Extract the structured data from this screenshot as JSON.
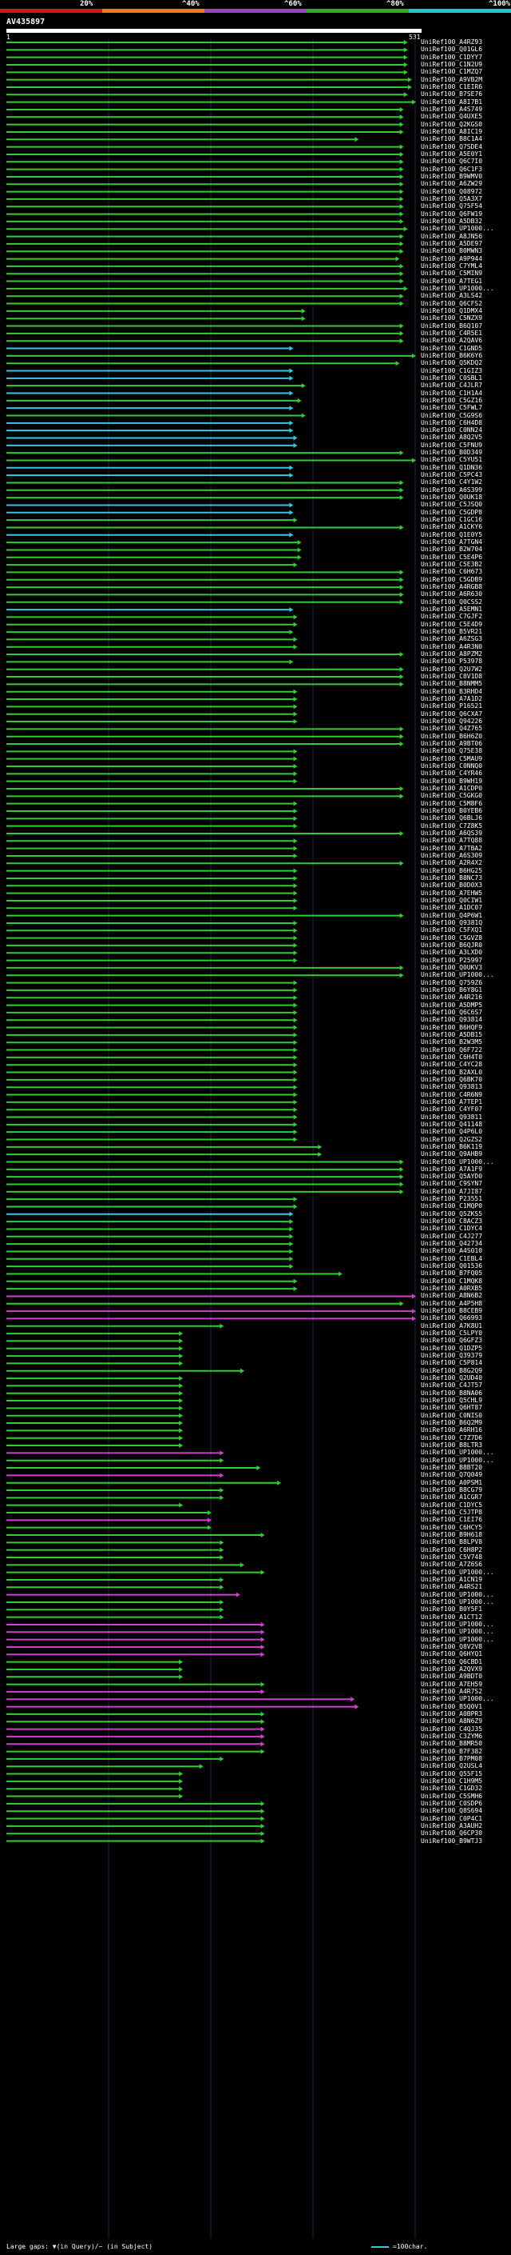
{
  "header": {
    "scale": [
      {
        "label": "20%",
        "color": "#e01010"
      },
      {
        "label": "^40%",
        "color": "#f07818"
      },
      {
        "label": "^60%",
        "color": "#a040c0"
      },
      {
        "label": "^80%",
        "color": "#30b020"
      },
      {
        "label": "^100%",
        "color": "#20c8d8"
      }
    ],
    "query_id": "AV435897",
    "query_start": "1",
    "query_end": "531"
  },
  "colors": {
    "green": "#33cc33",
    "cyan": "#33c8e0",
    "magenta": "#d040d0",
    "label": "#ffffff"
  },
  "hits": [
    {
      "id": "UniRef100_A4RZ93",
      "end": 0.98,
      "c": "g"
    },
    {
      "id": "UniRef100_Q01GL6",
      "end": 0.98,
      "c": "g"
    },
    {
      "id": "UniRef100_C1DYY7",
      "end": 0.98,
      "c": "g"
    },
    {
      "id": "UniRef100_C1N2U9",
      "end": 0.98,
      "c": "g"
    },
    {
      "id": "UniRef100_C1MZQ7",
      "end": 0.98,
      "c": "g"
    },
    {
      "id": "UniRef100_A9VB2M",
      "end": 0.99,
      "c": "g"
    },
    {
      "id": "UniRef100_C1EIR6",
      "end": 0.99,
      "c": "g"
    },
    {
      "id": "UniRef100_B7SE76",
      "end": 0.98,
      "c": "g"
    },
    {
      "id": "UniRef100_A8I7B1",
      "end": 1.0,
      "c": "g"
    },
    {
      "id": "UniRef100_A4S749",
      "end": 0.97,
      "c": "g"
    },
    {
      "id": "UniRef100_Q4UXE5",
      "end": 0.97,
      "c": "g"
    },
    {
      "id": "UniRef100_Q2KGS0",
      "end": 0.97,
      "c": "g"
    },
    {
      "id": "UniRef100_A8IC19",
      "end": 0.97,
      "c": "g"
    },
    {
      "id": "UniRef100_B8C1A4",
      "end": 0.86,
      "c": "g"
    },
    {
      "id": "UniRef100_Q7SDE4",
      "end": 0.97,
      "c": "g"
    },
    {
      "id": "UniRef100_A5E0Y1",
      "end": 0.97,
      "c": "g"
    },
    {
      "id": "UniRef100_Q6C7I0",
      "end": 0.97,
      "c": "g"
    },
    {
      "id": "UniRef100_Q6C1F3",
      "end": 0.97,
      "c": "g"
    },
    {
      "id": "UniRef100_B9WMV0",
      "end": 0.97,
      "c": "g"
    },
    {
      "id": "UniRef100_A6ZW29",
      "end": 0.97,
      "c": "g"
    },
    {
      "id": "UniRef100_Q08972",
      "end": 0.97,
      "c": "g"
    },
    {
      "id": "UniRef100_Q5A3X7",
      "end": 0.97,
      "c": "g"
    },
    {
      "id": "UniRef100_Q75F54",
      "end": 0.97,
      "c": "g"
    },
    {
      "id": "UniRef100_Q6FW19",
      "end": 0.97,
      "c": "g"
    },
    {
      "id": "UniRef100_A5DB32",
      "end": 0.97,
      "c": "g"
    },
    {
      "id": "UniRef100_UP1000...",
      "end": 0.98,
      "c": "g"
    },
    {
      "id": "UniRef100_A8JN56",
      "end": 0.97,
      "c": "g"
    },
    {
      "id": "UniRef100_A5DE97",
      "end": 0.97,
      "c": "g"
    },
    {
      "id": "UniRef100_B0MWN3",
      "end": 0.97,
      "c": "g"
    },
    {
      "id": "UniRef100_A9P944",
      "end": 0.96,
      "c": "g"
    },
    {
      "id": "UniRef100_C7YML4",
      "end": 0.97,
      "c": "g"
    },
    {
      "id": "UniRef100_C5MIN9",
      "end": 0.97,
      "c": "g"
    },
    {
      "id": "UniRef100_A7TEG1",
      "end": 0.97,
      "c": "g"
    },
    {
      "id": "UniRef100_UP1000...",
      "end": 0.98,
      "c": "g"
    },
    {
      "id": "UniRef100_A3LS42",
      "end": 0.97,
      "c": "g"
    },
    {
      "id": "UniRef100_Q6CFS2",
      "end": 0.97,
      "c": "g"
    },
    {
      "id": "UniRef100_Q1DMX4",
      "end": 0.73,
      "c": "g"
    },
    {
      "id": "UniRef100_C5NZX9",
      "end": 0.73,
      "c": "g"
    },
    {
      "id": "UniRef100_B6Q107",
      "end": 0.97,
      "c": "g"
    },
    {
      "id": "UniRef100_C4R5E1",
      "end": 0.97,
      "c": "g"
    },
    {
      "id": "UniRef100_A2QAV6",
      "end": 0.97,
      "c": "g"
    },
    {
      "id": "UniRef100_C1GND5",
      "end": 0.7,
      "c": "c"
    },
    {
      "id": "UniRef100_B6K6Y6",
      "end": 1.0,
      "c": "g"
    },
    {
      "id": "UniRef100_Q5KDQ2",
      "end": 0.96,
      "c": "g"
    },
    {
      "id": "UniRef100_C1GIZ3",
      "end": 0.7,
      "c": "c"
    },
    {
      "id": "UniRef100_C0SBL1",
      "end": 0.7,
      "c": "c"
    },
    {
      "id": "UniRef100_C4JLR7",
      "end": 0.73,
      "c": "g"
    },
    {
      "id": "UniRef100_C1H1A4",
      "end": 0.7,
      "c": "c"
    },
    {
      "id": "UniRef100_C5GZ16",
      "end": 0.72,
      "c": "g"
    },
    {
      "id": "UniRef100_C5FWL7",
      "end": 0.7,
      "c": "c"
    },
    {
      "id": "UniRef100_C5G9S6",
      "end": 0.73,
      "c": "g"
    },
    {
      "id": "UniRef100_C6H4D8",
      "end": 0.7,
      "c": "c"
    },
    {
      "id": "UniRef100_C0NN24",
      "end": 0.7,
      "c": "c"
    },
    {
      "id": "UniRef100_A8Q2V5",
      "end": 0.71,
      "c": "c"
    },
    {
      "id": "UniRef100_C5FNU9",
      "end": 0.71,
      "c": "c"
    },
    {
      "id": "UniRef100_B0D349",
      "end": 0.97,
      "c": "g"
    },
    {
      "id": "UniRef100_C5YU51",
      "end": 1.0,
      "c": "g"
    },
    {
      "id": "UniRef100_Q1DN36",
      "end": 0.7,
      "c": "c"
    },
    {
      "id": "UniRef100_C5PC43",
      "end": 0.7,
      "c": "c"
    },
    {
      "id": "UniRef100_C4Y1W2",
      "end": 0.97,
      "c": "g"
    },
    {
      "id": "UniRef100_A6S399",
      "end": 0.97,
      "c": "g"
    },
    {
      "id": "UniRef100_Q0UK18",
      "end": 0.97,
      "c": "g"
    },
    {
      "id": "UniRef100_C5JSQ0",
      "end": 0.7,
      "c": "c"
    },
    {
      "id": "UniRef100_C5GDP8",
      "end": 0.7,
      "c": "c"
    },
    {
      "id": "UniRef100_C1GC16",
      "end": 0.71,
      "c": "g"
    },
    {
      "id": "UniRef100_A1CKY6",
      "end": 0.97,
      "c": "g"
    },
    {
      "id": "UniRef100_Q1E0Y5",
      "end": 0.7,
      "c": "c"
    },
    {
      "id": "UniRef100_A7TGN4",
      "end": 0.72,
      "c": "g"
    },
    {
      "id": "UniRef100_B2W704",
      "end": 0.72,
      "c": "g"
    },
    {
      "id": "UniRef100_C5E4P6",
      "end": 0.72,
      "c": "g"
    },
    {
      "id": "UniRef100_C5E3B2",
      "end": 0.71,
      "c": "g"
    },
    {
      "id": "UniRef100_C6H673",
      "end": 0.97,
      "c": "g"
    },
    {
      "id": "UniRef100_C5GDB9",
      "end": 0.97,
      "c": "g"
    },
    {
      "id": "UniRef100_A4RGB8",
      "end": 0.97,
      "c": "g"
    },
    {
      "id": "UniRef100_A6R630",
      "end": 0.97,
      "c": "g"
    },
    {
      "id": "UniRef100_Q0CSS2",
      "end": 0.97,
      "c": "g"
    },
    {
      "id": "UniRef100_A5EMN1",
      "end": 0.7,
      "c": "c"
    },
    {
      "id": "UniRef100_C7GJF2",
      "end": 0.71,
      "c": "g"
    },
    {
      "id": "UniRef100_C5E4D9",
      "end": 0.71,
      "c": "g"
    },
    {
      "id": "UniRef100_B5VR21",
      "end": 0.7,
      "c": "g"
    },
    {
      "id": "UniRef100_A6ZSG3",
      "end": 0.71,
      "c": "g"
    },
    {
      "id": "UniRef100_A4R3N0",
      "end": 0.71,
      "c": "g"
    },
    {
      "id": "UniRef100_A8PZM2",
      "end": 0.97,
      "c": "g"
    },
    {
      "id": "UniRef100_P53978",
      "end": 0.7,
      "c": "g"
    },
    {
      "id": "UniRef100_Q2U7W2",
      "end": 0.97,
      "c": "g"
    },
    {
      "id": "UniRef100_C8V1D8",
      "end": 0.97,
      "c": "g"
    },
    {
      "id": "UniRef100_B8NMM5",
      "end": 0.97,
      "c": "g"
    },
    {
      "id": "UniRef100_B3RHD4",
      "end": 0.71,
      "c": "g"
    },
    {
      "id": "UniRef100_A7A1D2",
      "end": 0.71,
      "c": "g"
    },
    {
      "id": "UniRef100_P16521",
      "end": 0.71,
      "c": "g"
    },
    {
      "id": "UniRef100_Q6CXA7",
      "end": 0.71,
      "c": "g"
    },
    {
      "id": "UniRef100_Q94226",
      "end": 0.71,
      "c": "g"
    },
    {
      "id": "UniRef100_Q4Z765",
      "end": 0.97,
      "c": "g"
    },
    {
      "id": "UniRef100_B6H6Z0",
      "end": 0.97,
      "c": "g"
    },
    {
      "id": "UniRef100_A9BT06",
      "end": 0.97,
      "c": "g"
    },
    {
      "id": "UniRef100_Q75E38",
      "end": 0.71,
      "c": "g"
    },
    {
      "id": "UniRef100_C5MAU9",
      "end": 0.71,
      "c": "g"
    },
    {
      "id": "UniRef100_C0NNQ0",
      "end": 0.71,
      "c": "g"
    },
    {
      "id": "UniRef100_C4YR46",
      "end": 0.71,
      "c": "g"
    },
    {
      "id": "UniRef100_B9WH19",
      "end": 0.71,
      "c": "g"
    },
    {
      "id": "UniRef100_A1CDP0",
      "end": 0.97,
      "c": "g"
    },
    {
      "id": "UniRef100_C5GKG0",
      "end": 0.97,
      "c": "g"
    },
    {
      "id": "UniRef100_C5M8F6",
      "end": 0.71,
      "c": "g"
    },
    {
      "id": "UniRef100_B0YEB6",
      "end": 0.71,
      "c": "g"
    },
    {
      "id": "UniRef100_Q6BLJ6",
      "end": 0.71,
      "c": "g"
    },
    {
      "id": "UniRef100_C7Z8K5",
      "end": 0.71,
      "c": "g"
    },
    {
      "id": "UniRef100_A6QS39",
      "end": 0.97,
      "c": "g"
    },
    {
      "id": "UniRef100_A7TQ88",
      "end": 0.71,
      "c": "g"
    },
    {
      "id": "UniRef100_A7TBA2",
      "end": 0.71,
      "c": "g"
    },
    {
      "id": "UniRef100_A6S309",
      "end": 0.71,
      "c": "g"
    },
    {
      "id": "UniRef100_A2R4X2",
      "end": 0.97,
      "c": "g"
    },
    {
      "id": "UniRef100_B6HG25",
      "end": 0.71,
      "c": "g"
    },
    {
      "id": "UniRef100_B8NC73",
      "end": 0.71,
      "c": "g"
    },
    {
      "id": "UniRef100_B0D0X3",
      "end": 0.71,
      "c": "g"
    },
    {
      "id": "UniRef100_A7EHW5",
      "end": 0.71,
      "c": "g"
    },
    {
      "id": "UniRef100_Q0CIW1",
      "end": 0.71,
      "c": "g"
    },
    {
      "id": "UniRef100_A1DC07",
      "end": 0.71,
      "c": "g"
    },
    {
      "id": "UniRef100_Q4P6W1",
      "end": 0.97,
      "c": "g"
    },
    {
      "id": "UniRef100_Q9381Q",
      "end": 0.71,
      "c": "g"
    },
    {
      "id": "UniRef100_C5FXQ1",
      "end": 0.71,
      "c": "g"
    },
    {
      "id": "UniRef100_C5GVZ8",
      "end": 0.71,
      "c": "g"
    },
    {
      "id": "UniRef100_B6QJR0",
      "end": 0.71,
      "c": "g"
    },
    {
      "id": "UniRef100_A3LXD0",
      "end": 0.71,
      "c": "g"
    },
    {
      "id": "UniRef100_P25997",
      "end": 0.71,
      "c": "g"
    },
    {
      "id": "UniRef100_Q0UKV3",
      "end": 0.97,
      "c": "g"
    },
    {
      "id": "UniRef100_UP1000...",
      "end": 0.97,
      "c": "g"
    },
    {
      "id": "UniRef100_Q759Z6",
      "end": 0.71,
      "c": "g"
    },
    {
      "id": "UniRef100_B6Y8G1",
      "end": 0.71,
      "c": "g"
    },
    {
      "id": "UniRef100_A4R216",
      "end": 0.71,
      "c": "g"
    },
    {
      "id": "UniRef100_A5DMP5",
      "end": 0.71,
      "c": "g"
    },
    {
      "id": "UniRef100_Q6C6S7",
      "end": 0.71,
      "c": "g"
    },
    {
      "id": "UniRef100_Q93814",
      "end": 0.71,
      "c": "g"
    },
    {
      "id": "UniRef100_B6HQF9",
      "end": 0.71,
      "c": "g"
    },
    {
      "id": "UniRef100_A5DB15",
      "end": 0.71,
      "c": "g"
    },
    {
      "id": "UniRef100_B2W3M5",
      "end": 0.71,
      "c": "g"
    },
    {
      "id": "UniRef100_Q6F722",
      "end": 0.71,
      "c": "g"
    },
    {
      "id": "UniRef100_C6H4T0",
      "end": 0.71,
      "c": "g"
    },
    {
      "id": "UniRef100_C4YC28",
      "end": 0.71,
      "c": "g"
    },
    {
      "id": "UniRef100_B2AXL0",
      "end": 0.71,
      "c": "g"
    },
    {
      "id": "UniRef100_Q6BK70",
      "end": 0.71,
      "c": "g"
    },
    {
      "id": "UniRef100_Q93813",
      "end": 0.71,
      "c": "g"
    },
    {
      "id": "UniRef100_C4R6N9",
      "end": 0.71,
      "c": "g"
    },
    {
      "id": "UniRef100_A7TEP1",
      "end": 0.71,
      "c": "g"
    },
    {
      "id": "UniRef100_C4YF07",
      "end": 0.71,
      "c": "g"
    },
    {
      "id": "UniRef100_Q93811",
      "end": 0.71,
      "c": "g"
    },
    {
      "id": "UniRef100_Q41148",
      "end": 0.71,
      "c": "g"
    },
    {
      "id": "UniRef100_Q4P6L0",
      "end": 0.71,
      "c": "g"
    },
    {
      "id": "UniRef100_Q2GZS2",
      "end": 0.71,
      "c": "g"
    },
    {
      "id": "UniRef100_B6K119",
      "end": 0.77,
      "c": "g"
    },
    {
      "id": "UniRef100_Q9AHB9",
      "end": 0.77,
      "c": "g"
    },
    {
      "id": "UniRef100_UP1000...",
      "end": 0.97,
      "c": "g"
    },
    {
      "id": "UniRef100_A7A1F9",
      "end": 0.97,
      "c": "g"
    },
    {
      "id": "UniRef100_Q5AYD0",
      "end": 0.97,
      "c": "g"
    },
    {
      "id": "UniRef100_C9SYN7",
      "end": 0.97,
      "c": "g"
    },
    {
      "id": "UniRef100_A7JI87",
      "end": 0.97,
      "c": "g"
    },
    {
      "id": "UniRef100_P23551",
      "end": 0.71,
      "c": "g"
    },
    {
      "id": "UniRef100_C1MQP0",
      "end": 0.71,
      "c": "g"
    },
    {
      "id": "UniRef100_Q5ZKS5",
      "end": 0.7,
      "c": "c"
    },
    {
      "id": "UniRef100_C8ACZ3",
      "end": 0.7,
      "c": "g"
    },
    {
      "id": "UniRef100_C1DYC4",
      "end": 0.7,
      "c": "g"
    },
    {
      "id": "UniRef100_C4J277",
      "end": 0.7,
      "c": "g"
    },
    {
      "id": "UniRef100_Q42734",
      "end": 0.7,
      "c": "g"
    },
    {
      "id": "UniRef100_A4S010",
      "end": 0.7,
      "c": "g"
    },
    {
      "id": "UniRef100_C1EBL4",
      "end": 0.7,
      "c": "g"
    },
    {
      "id": "UniRef100_Q01536",
      "end": 0.7,
      "c": "g"
    },
    {
      "id": "UniRef100_B7FQ05",
      "end": 0.82,
      "c": "g"
    },
    {
      "id": "UniRef100_C1MQK8",
      "end": 0.71,
      "c": "g"
    },
    {
      "id": "UniRef100_A0RXB5",
      "end": 0.71,
      "c": "g"
    },
    {
      "id": "UniRef100_A8N6B2",
      "end": 1.0,
      "c": "m"
    },
    {
      "id": "UniRef100_A4P5H8",
      "end": 0.97,
      "c": "g"
    },
    {
      "id": "UniRef100_B8CEB9",
      "end": 1.0,
      "c": "m"
    },
    {
      "id": "UniRef100_Q66993",
      "end": 1.0,
      "c": "m"
    },
    {
      "id": "UniRef100_A7K8U1",
      "end": 0.53,
      "c": "g"
    },
    {
      "id": "UniRef100_C5LPY0",
      "end": 0.43,
      "c": "g"
    },
    {
      "id": "UniRef100_Q6GFZ3",
      "end": 0.43,
      "c": "g"
    },
    {
      "id": "UniRef100_Q1DZP5",
      "end": 0.43,
      "c": "g"
    },
    {
      "id": "UniRef100_Q39379",
      "end": 0.43,
      "c": "g"
    },
    {
      "id": "UniRef100_C5P814",
      "end": 0.43,
      "c": "g"
    },
    {
      "id": "UniRef100_B8G2Q9",
      "end": 0.58,
      "c": "g"
    },
    {
      "id": "UniRef100_Q2UD40",
      "end": 0.43,
      "c": "g"
    },
    {
      "id": "UniRef100_C4JT57",
      "end": 0.43,
      "c": "g"
    },
    {
      "id": "UniRef100_B8NA06",
      "end": 0.43,
      "c": "g"
    },
    {
      "id": "UniRef100_Q5CHL9",
      "end": 0.43,
      "c": "g"
    },
    {
      "id": "UniRef100_Q6HT87",
      "end": 0.43,
      "c": "g"
    },
    {
      "id": "UniRef100_C0NIS0",
      "end": 0.43,
      "c": "g"
    },
    {
      "id": "UniRef100_B6Q2M9",
      "end": 0.43,
      "c": "g"
    },
    {
      "id": "UniRef100_A6RH16",
      "end": 0.43,
      "c": "g"
    },
    {
      "id": "UniRef100_C7Z7D6",
      "end": 0.43,
      "c": "g"
    },
    {
      "id": "UniRef100_B8LTR3",
      "end": 0.43,
      "c": "g"
    },
    {
      "id": "UniRef100_UP1000...",
      "end": 0.53,
      "c": "m"
    },
    {
      "id": "UniRef100_UP1000...",
      "end": 0.53,
      "c": "g"
    },
    {
      "id": "UniRef100_B8BT20",
      "end": 0.62,
      "c": "g"
    },
    {
      "id": "UniRef100_Q7Q049",
      "end": 0.53,
      "c": "m"
    },
    {
      "id": "UniRef100_A0PSM1",
      "end": 0.67,
      "c": "g"
    },
    {
      "id": "UniRef100_B8CG79",
      "end": 0.53,
      "c": "g"
    },
    {
      "id": "UniRef100_A1CGR7",
      "end": 0.53,
      "c": "g"
    },
    {
      "id": "UniRef100_C1DYC5",
      "end": 0.43,
      "c": "g"
    },
    {
      "id": "UniRef100_C5JTP8",
      "end": 0.5,
      "c": "g"
    },
    {
      "id": "UniRef100_C1EI76",
      "end": 0.5,
      "c": "m"
    },
    {
      "id": "UniRef100_C6HCY5",
      "end": 0.5,
      "c": "g"
    },
    {
      "id": "UniRef100_B9H618",
      "end": 0.63,
      "c": "g"
    },
    {
      "id": "UniRef100_B8LPV8",
      "end": 0.53,
      "c": "g"
    },
    {
      "id": "UniRef100_C6H8P2",
      "end": 0.53,
      "c": "g"
    },
    {
      "id": "UniRef100_C5V748",
      "end": 0.53,
      "c": "g"
    },
    {
      "id": "UniRef100_A7Z6S6",
      "end": 0.58,
      "c": "g"
    },
    {
      "id": "UniRef100_UP1000...",
      "end": 0.63,
      "c": "g"
    },
    {
      "id": "UniRef100_A1CN19",
      "end": 0.53,
      "c": "g"
    },
    {
      "id": "UniRef100_A4RS21",
      "end": 0.53,
      "c": "g"
    },
    {
      "id": "UniRef100_UP1000...",
      "end": 0.57,
      "c": "m"
    },
    {
      "id": "UniRef100_UP1000...",
      "end": 0.53,
      "c": "g"
    },
    {
      "id": "UniRef100_B0Y5F1",
      "end": 0.53,
      "c": "g"
    },
    {
      "id": "UniRef100_A1CT12",
      "end": 0.53,
      "c": "g"
    },
    {
      "id": "UniRef100_UP1000...",
      "end": 0.63,
      "c": "m"
    },
    {
      "id": "UniRef100_UP1000...",
      "end": 0.63,
      "c": "m"
    },
    {
      "id": "UniRef100_UP1000...",
      "end": 0.63,
      "c": "m"
    },
    {
      "id": "UniRef100_Q8V2V8",
      "end": 0.63,
      "c": "m"
    },
    {
      "id": "UniRef100_Q6HYQ1",
      "end": 0.63,
      "c": "m"
    },
    {
      "id": "UniRef100_Q6CBD1",
      "end": 0.43,
      "c": "g"
    },
    {
      "id": "UniRef100_A2QVX9",
      "end": 0.43,
      "c": "g"
    },
    {
      "id": "UniRef100_A9BDT0",
      "end": 0.43,
      "c": "g"
    },
    {
      "id": "UniRef100_A7EH59",
      "end": 0.63,
      "c": "g"
    },
    {
      "id": "UniRef100_A4R7S2",
      "end": 0.63,
      "c": "m"
    },
    {
      "id": "UniRef100_UP1000...",
      "end": 0.85,
      "c": "m"
    },
    {
      "id": "UniRef100_B5Q0V1",
      "end": 0.86,
      "c": "m"
    },
    {
      "id": "UniRef100_A0BPR3",
      "end": 0.63,
      "c": "g"
    },
    {
      "id": "UniRef100_A8N6Z9",
      "end": 0.63,
      "c": "g"
    },
    {
      "id": "UniRef100_C4QJ35",
      "end": 0.63,
      "c": "m"
    },
    {
      "id": "UniRef100_C3ZYM6",
      "end": 0.63,
      "c": "m"
    },
    {
      "id": "UniRef100_B8MR50",
      "end": 0.63,
      "c": "m"
    },
    {
      "id": "UniRef100_B7F382",
      "end": 0.63,
      "c": "g"
    },
    {
      "id": "UniRef100_B7PM08",
      "end": 0.53,
      "c": "g"
    },
    {
      "id": "UniRef100_Q2USL4",
      "end": 0.48,
      "c": "g"
    },
    {
      "id": "UniRef100_Q55F15",
      "end": 0.43,
      "c": "g"
    },
    {
      "id": "UniRef100_C1H9M5",
      "end": 0.43,
      "c": "g"
    },
    {
      "id": "UniRef100_C1GD32",
      "end": 0.43,
      "c": "g"
    },
    {
      "id": "UniRef100_C5SMH6",
      "end": 0.43,
      "c": "g"
    },
    {
      "id": "UniRef100_C0SDP6",
      "end": 0.63,
      "c": "g"
    },
    {
      "id": "UniRef100_Q8S694",
      "end": 0.63,
      "c": "g"
    },
    {
      "id": "UniRef100_C0P4C1",
      "end": 0.63,
      "c": "g"
    },
    {
      "id": "UniRef100_A3AUH2",
      "end": 0.63,
      "c": "g"
    },
    {
      "id": "UniRef100_Q6CP30",
      "end": 0.63,
      "c": "g"
    },
    {
      "id": "UniRef100_B9WTJ3",
      "end": 0.63,
      "c": "g"
    }
  ],
  "footer": {
    "text": "Large gaps: ▼(in Query)/~ (in Subject)",
    "scale_text": "=100char."
  }
}
